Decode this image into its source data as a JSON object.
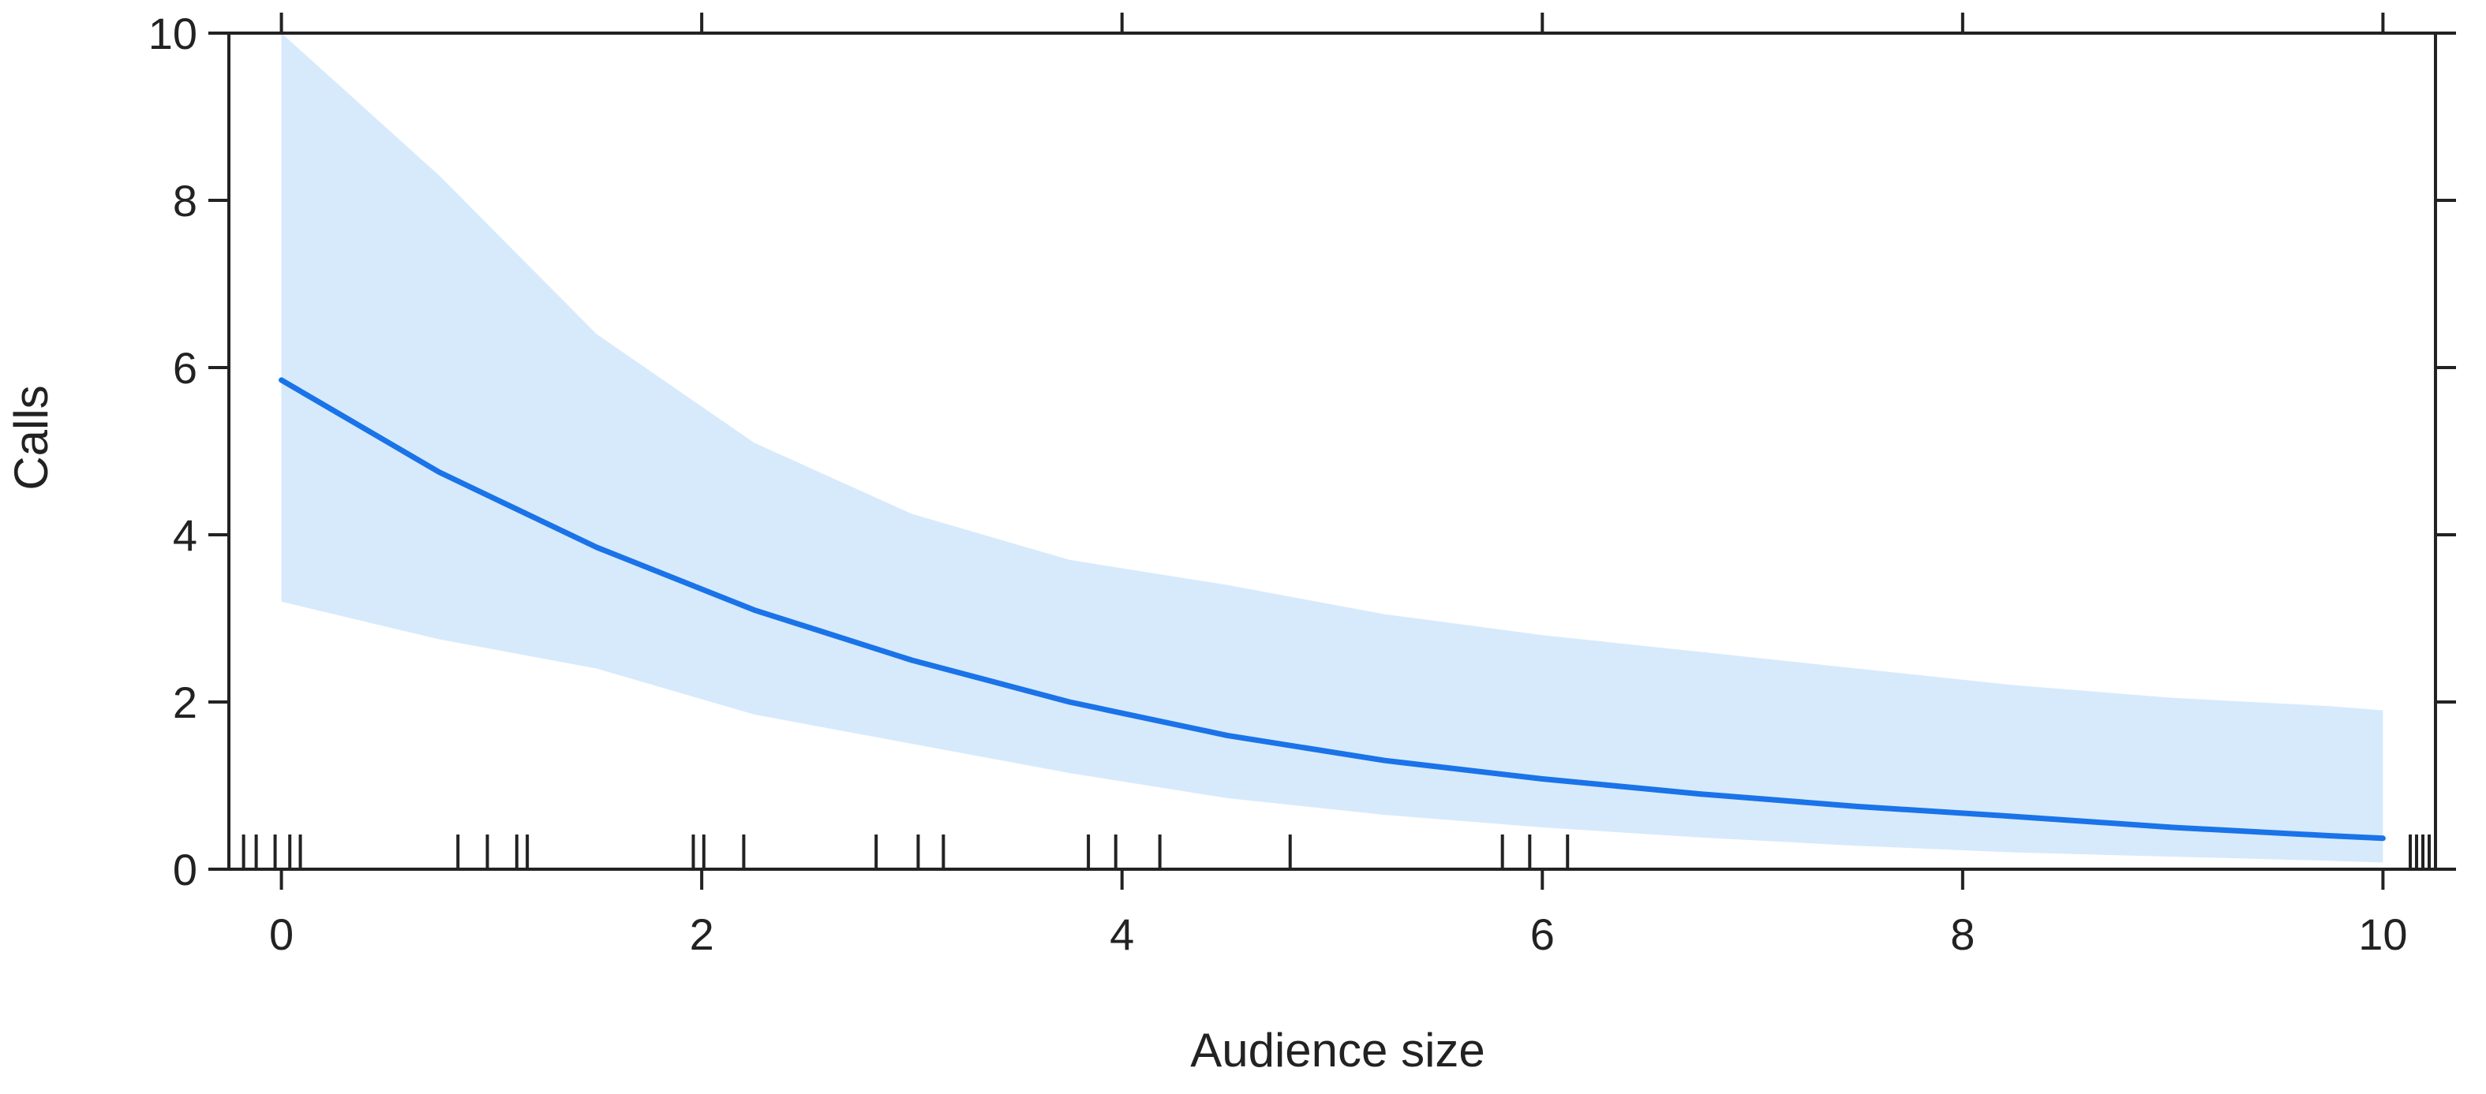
{
  "chart_data": {
    "type": "line",
    "title": "",
    "xlabel": "Audience size",
    "ylabel": "Calls",
    "xlim": [
      -0.25,
      10.25
    ],
    "ylim": [
      0,
      10
    ],
    "xticks": [
      0,
      2,
      4,
      6,
      8,
      10
    ],
    "yticks": [
      0,
      2,
      4,
      6,
      8,
      10
    ],
    "grid": false,
    "colors": {
      "line": "#1a73e8",
      "band": "#d7eafc",
      "axis": "#222222",
      "rug": "#222222"
    },
    "series": [
      {
        "x": [
          0,
          0.75,
          1.5,
          2.25,
          3.0,
          3.75,
          4.5,
          5.25,
          6.0,
          6.75,
          7.5,
          8.25,
          9.0,
          9.75,
          10.0
        ],
        "y": [
          5.85,
          4.75,
          3.85,
          3.1,
          2.5,
          2.0,
          1.6,
          1.3,
          1.08,
          0.9,
          0.75,
          0.63,
          0.5,
          0.4,
          0.37
        ],
        "lower": [
          3.2,
          2.75,
          2.4,
          1.85,
          1.5,
          1.15,
          0.85,
          0.65,
          0.5,
          0.38,
          0.28,
          0.2,
          0.15,
          0.1,
          0.08
        ],
        "upper": [
          10.0,
          8.3,
          6.4,
          5.1,
          4.25,
          3.7,
          3.4,
          3.05,
          2.8,
          2.6,
          2.4,
          2.2,
          2.05,
          1.95,
          1.9
        ]
      }
    ],
    "rug": [
      -0.18,
      -0.12,
      -0.03,
      0.04,
      0.09,
      0.84,
      0.98,
      1.12,
      1.17,
      1.96,
      2.01,
      2.2,
      2.83,
      3.03,
      3.15,
      3.84,
      3.97,
      4.18,
      4.8,
      5.81,
      5.94,
      6.12,
      10.13,
      10.16,
      10.19,
      10.22
    ]
  }
}
